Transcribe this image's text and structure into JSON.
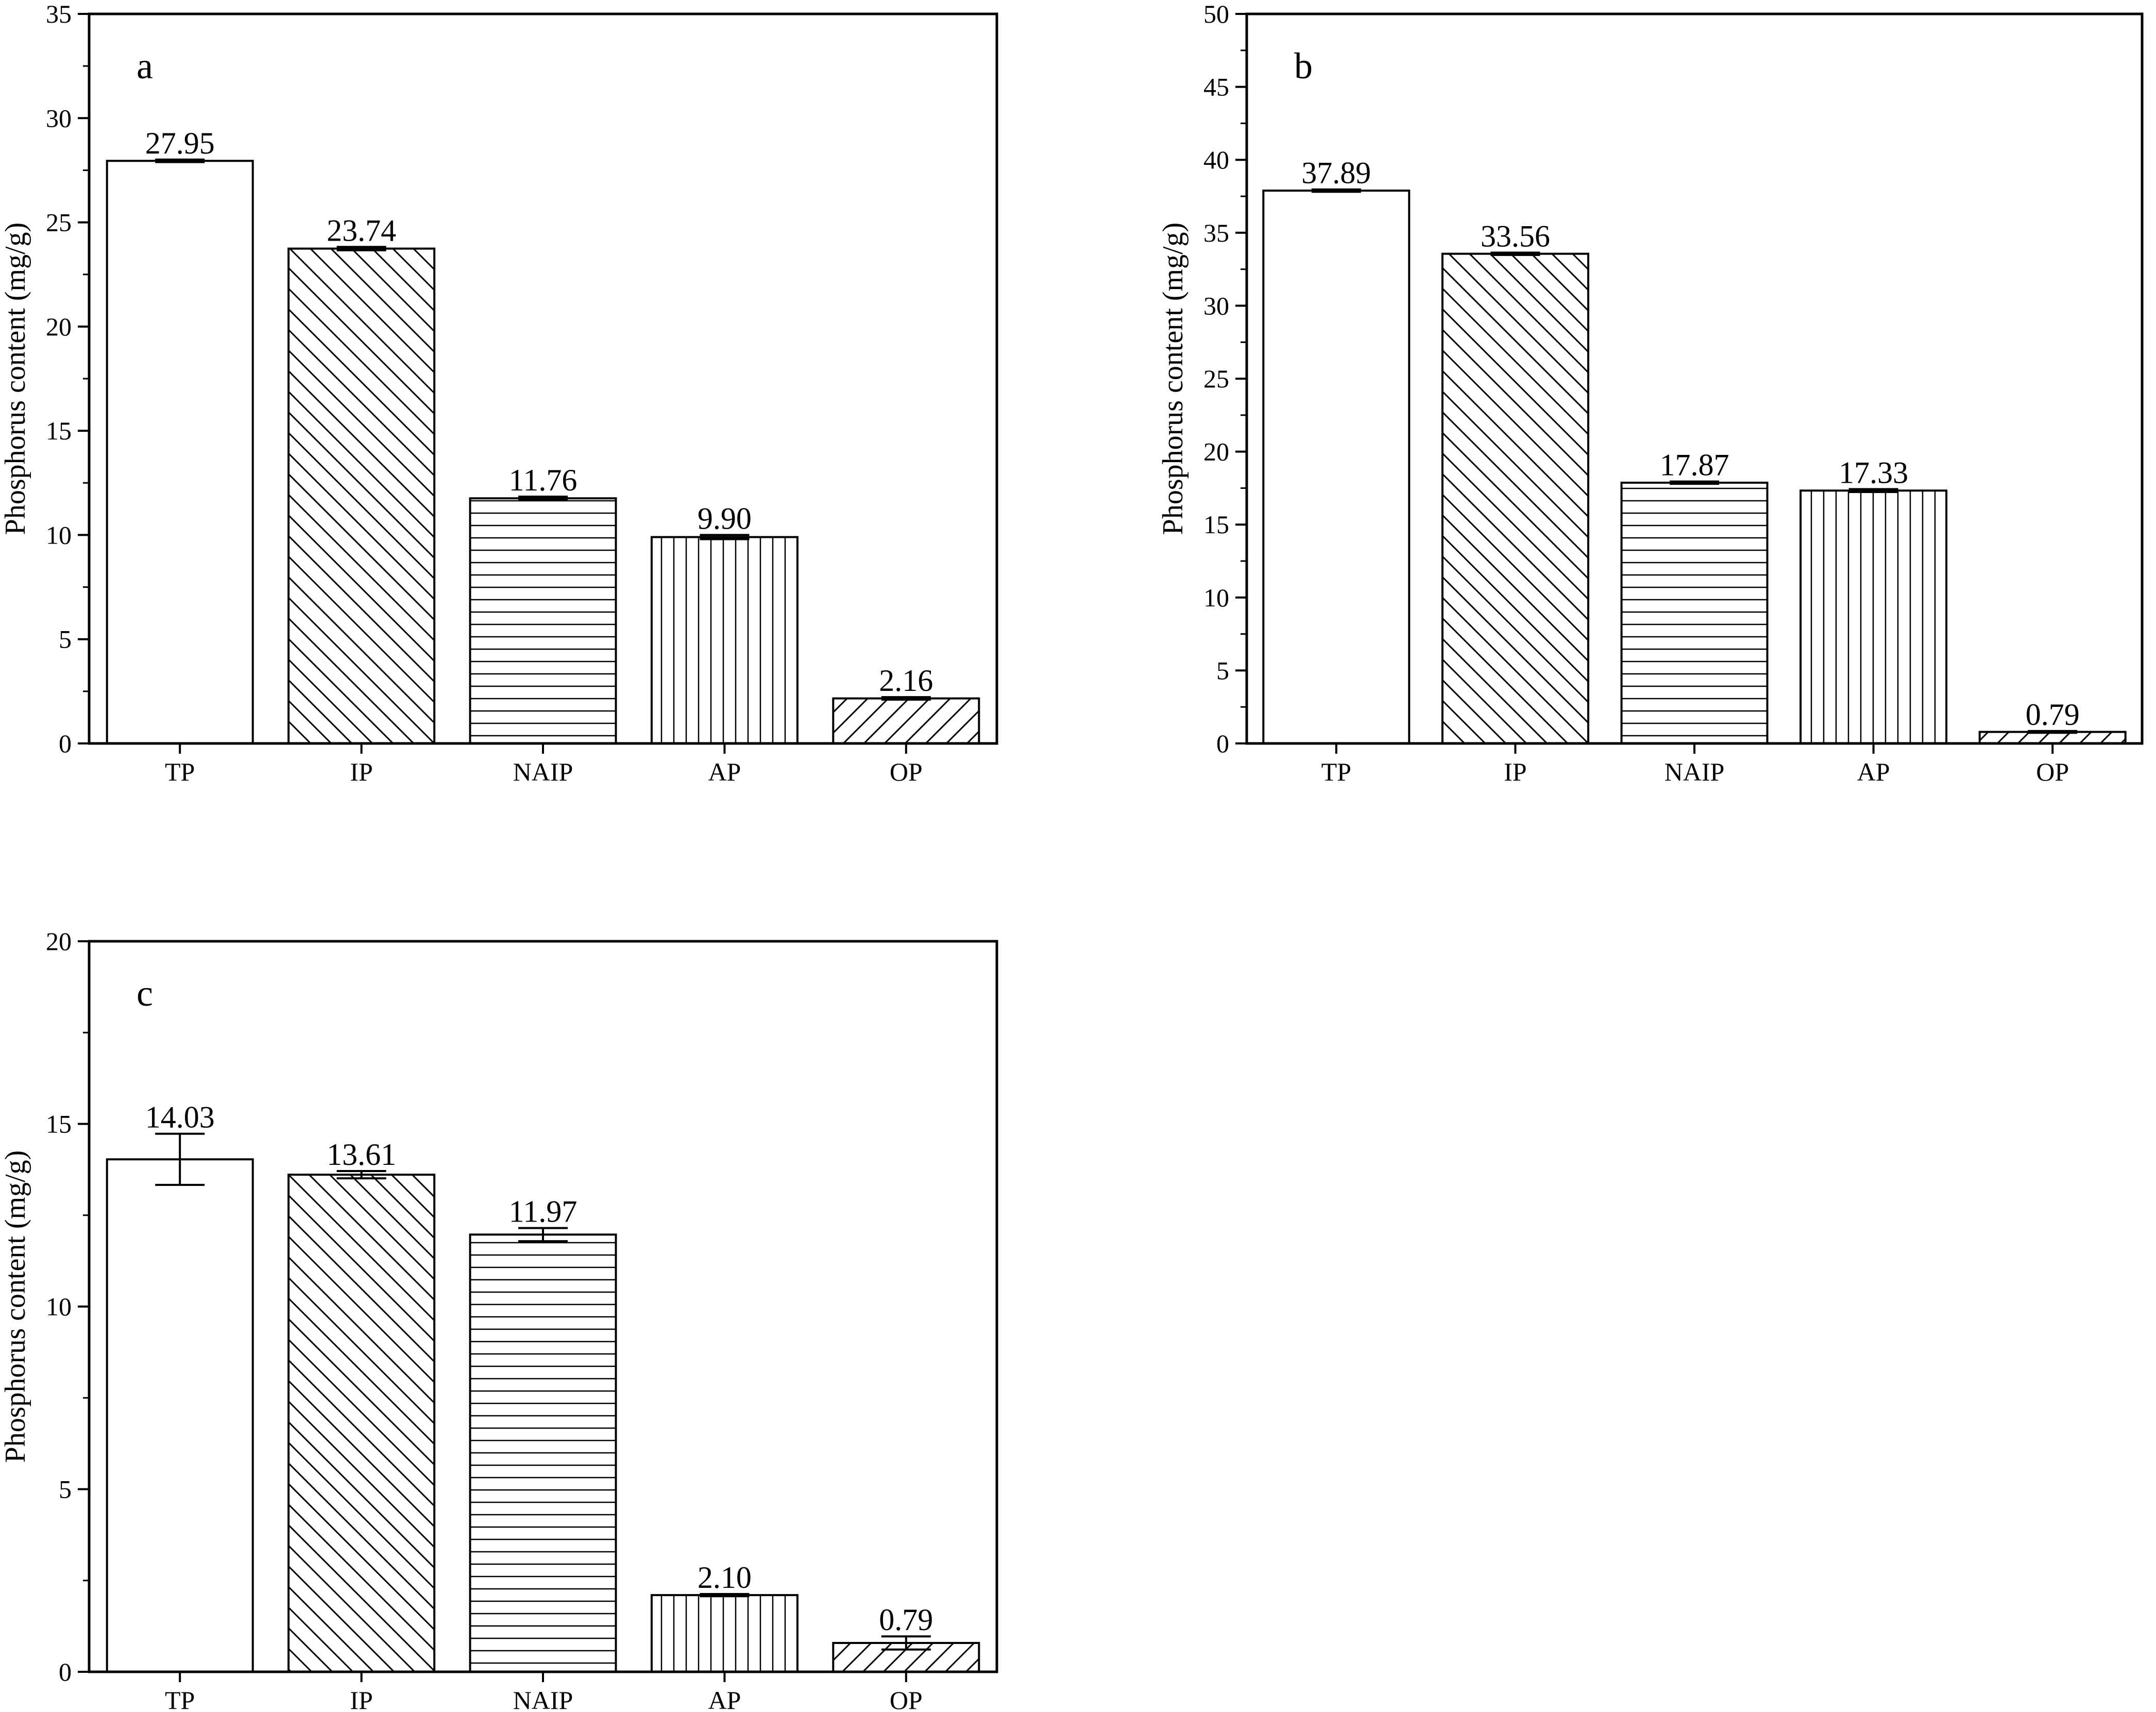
{
  "chart_data": [
    {
      "type": "bar",
      "panel_label": "a",
      "ylabel": "Phosphorus content (mg/g)",
      "ylim": [
        0,
        35
      ],
      "yticks": [
        0,
        5,
        10,
        15,
        20,
        25,
        30,
        35
      ],
      "categories": [
        "TP",
        "IP",
        "NAIP",
        "AP",
        "OP"
      ],
      "values": [
        27.95,
        23.74,
        11.76,
        9.9,
        2.16
      ],
      "value_labels": [
        "27.95",
        "23.74",
        "11.76",
        "9.90",
        "2.16"
      ],
      "errors": [
        0.06,
        0.08,
        0.08,
        0.1,
        0.06
      ],
      "patterns": [
        "none",
        "diag-down",
        "horizontal",
        "vertical",
        "diag-up"
      ],
      "grid": false
    },
    {
      "type": "bar",
      "panel_label": "b",
      "ylabel": "Phosphorus content (mg/g)",
      "ylim": [
        0,
        50
      ],
      "yticks": [
        0,
        5,
        10,
        15,
        20,
        25,
        30,
        35,
        40,
        45,
        50
      ],
      "categories": [
        "TP",
        "IP",
        "NAIP",
        "AP",
        "OP"
      ],
      "values": [
        37.89,
        33.56,
        17.87,
        17.33,
        0.79
      ],
      "value_labels": [
        "37.89",
        "33.56",
        "17.87",
        "17.33",
        "0.79"
      ],
      "errors": [
        0.08,
        0.08,
        0.08,
        0.1,
        0.06
      ],
      "patterns": [
        "none",
        "diag-down",
        "horizontal",
        "vertical",
        "diag-up"
      ],
      "grid": false
    },
    {
      "type": "bar",
      "panel_label": "c",
      "ylabel": "Phosphorus content (mg/g)",
      "ylim": [
        0,
        20
      ],
      "yticks": [
        0,
        5,
        10,
        15,
        20
      ],
      "categories": [
        "TP",
        "IP",
        "NAIP",
        "AP",
        "OP"
      ],
      "values": [
        14.03,
        13.61,
        11.97,
        2.1,
        0.79
      ],
      "value_labels": [
        "14.03",
        "13.61",
        "11.97",
        "2.10",
        "0.79"
      ],
      "errors": [
        0.7,
        0.1,
        0.18,
        0.03,
        0.18
      ],
      "patterns": [
        "none",
        "diag-down",
        "horizontal",
        "vertical",
        "diag-up"
      ],
      "grid": false
    }
  ]
}
